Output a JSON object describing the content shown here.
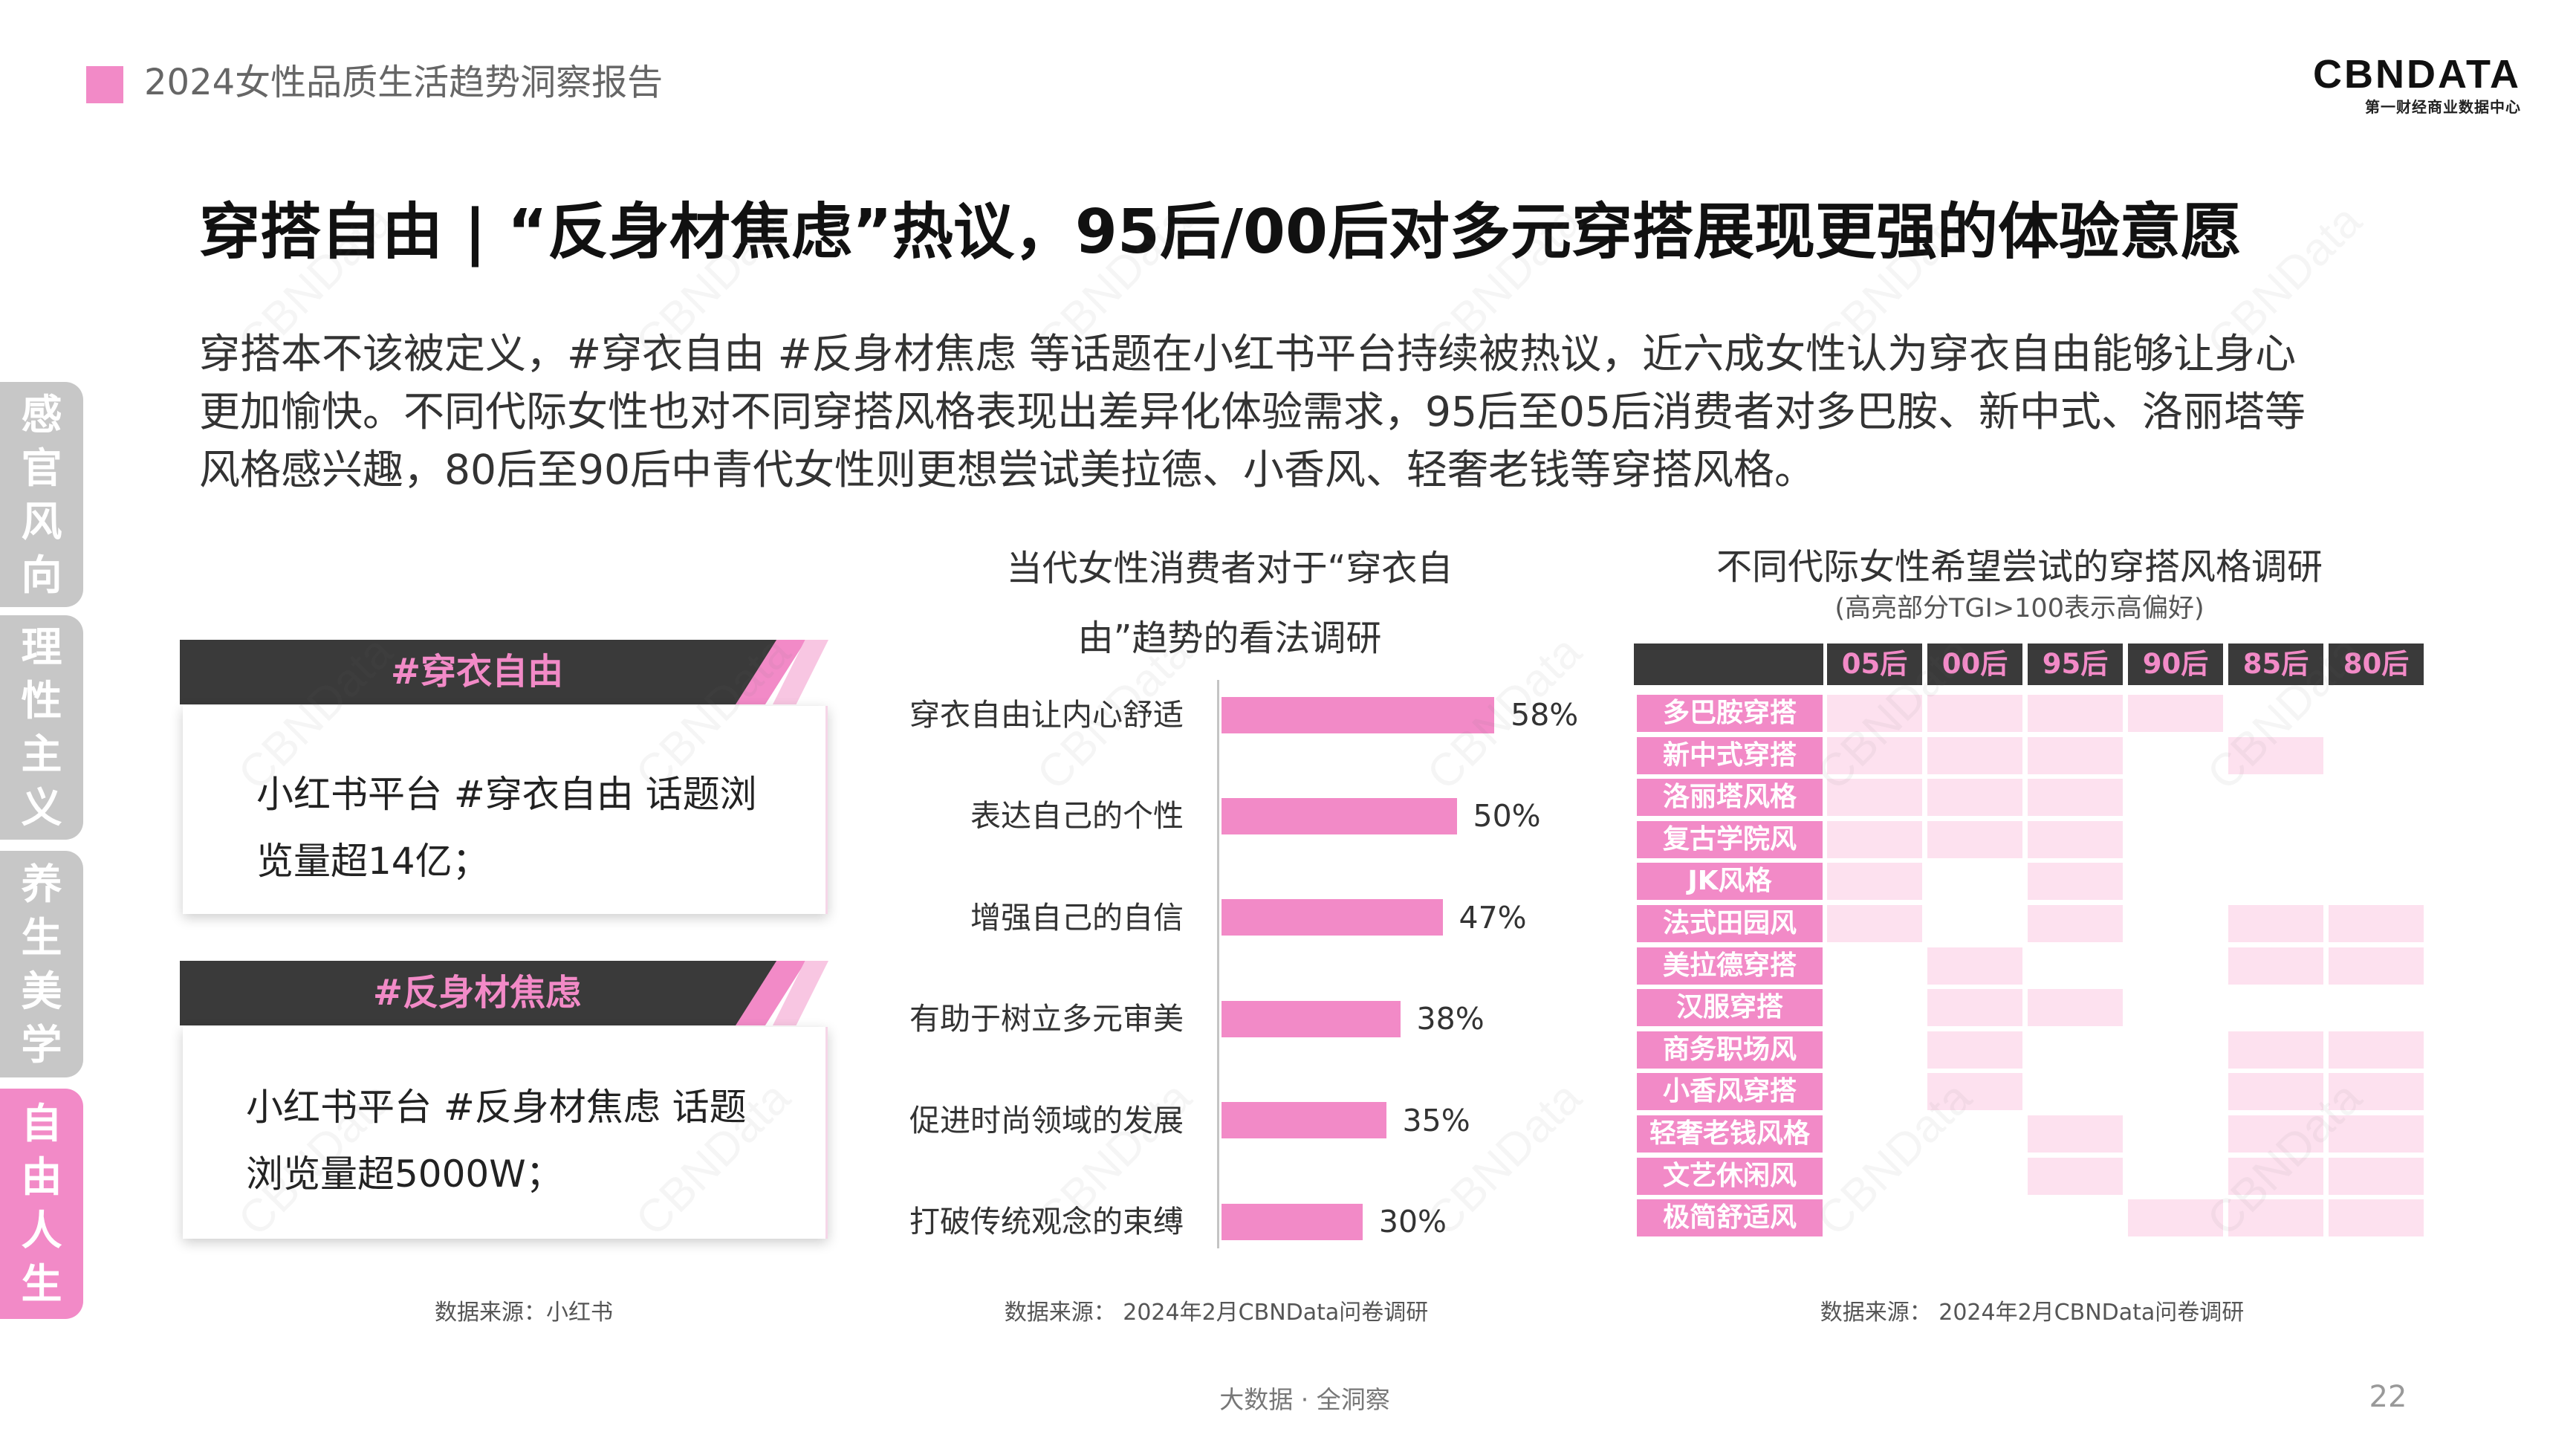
{
  "header": {
    "report_title": "2024女性品质生活趋势洞察报告"
  },
  "logo": {
    "text": "CBNDATA",
    "subtitle": "第一财经商业数据中心"
  },
  "title": "穿搭自由 | “反身材焦虑”热议，95后/00后对多元穿搭展现更强的体验意愿",
  "intro_lines": [
    "穿搭本不该被定义，#穿衣自由 #反身材焦虑 等话题在小红书平台持续被热议，近六成女性认为穿衣自由能够让身心",
    "更加愉快。不同代际女性也对不同穿搭风格表现出差异化体验需求，95后至05后消费者对多巴胺、新中式、洛丽塔等",
    "风格感兴趣，80后至90后中青代女性则更想尝试美拉德、小香风、轻奢老钱等穿搭风格。"
  ],
  "sidebar": {
    "tabs": [
      {
        "label": "感官风向",
        "active": false
      },
      {
        "label": "理性主义",
        "active": false
      },
      {
        "label": "养生美学",
        "active": false
      },
      {
        "label": "自由人生",
        "active": true
      }
    ]
  },
  "cards": [
    {
      "tag": "#穿衣自由",
      "lines": [
        "小红书平台 #穿衣自由 话题浏",
        "览量超14亿；"
      ]
    },
    {
      "tag": "#反身材焦虑",
      "lines": [
        "小红书平台 #反身材焦虑 话题",
        "浏览量超5000W；"
      ]
    }
  ],
  "sources": {
    "cards": "数据来源：小红书",
    "bar_chart": "数据来源： 2024年2月CBNData问卷调研",
    "heatmap": "数据来源： 2024年2月CBNData问卷调研"
  },
  "chart_data": [
    {
      "type": "bar",
      "orientation": "horizontal",
      "title_lines": [
        "当代女性消费者对于“穿衣自",
        "由”趋势的看法调研"
      ],
      "categories": [
        "穿衣自由让内心舒适",
        "表达自己的个性",
        "增强自己的自信",
        "有助于树立多元审美",
        "促进时尚领域的发展",
        "打破传统观念的束缚"
      ],
      "values": [
        58,
        50,
        47,
        38,
        35,
        30
      ],
      "value_labels": [
        "58%",
        "50%",
        "47%",
        "38%",
        "35%",
        "30%"
      ],
      "xlim": [
        0,
        100
      ],
      "grid": false,
      "bar_color": "#f28ac7"
    },
    {
      "type": "heatmap",
      "title": "不同代际女性希望尝试的穿搭风格调研",
      "subtitle": "(高亮部分TGI>100表示高偏好)",
      "columns": [
        "05后",
        "00后",
        "95后",
        "90后",
        "85后",
        "80后"
      ],
      "rows": [
        "多巴胺穿搭",
        "新中式穿搭",
        "洛丽塔风格",
        "复古学院风",
        "JK风格",
        "法式田园风",
        "美拉德穿搭",
        "汉服穿搭",
        "商务职场风",
        "小香风穿搭",
        "轻奢老钱风格",
        "文艺休闲风",
        "极简舒适风"
      ],
      "tgi_over_100": [
        [
          1,
          1,
          1,
          1,
          0,
          0
        ],
        [
          1,
          1,
          1,
          0,
          1,
          0
        ],
        [
          1,
          1,
          1,
          0,
          0,
          0
        ],
        [
          1,
          1,
          1,
          0,
          0,
          0
        ],
        [
          1,
          0,
          1,
          0,
          0,
          0
        ],
        [
          1,
          0,
          1,
          0,
          1,
          1
        ],
        [
          0,
          1,
          0,
          0,
          1,
          1
        ],
        [
          0,
          1,
          1,
          0,
          0,
          0
        ],
        [
          0,
          1,
          0,
          0,
          1,
          1
        ],
        [
          0,
          1,
          0,
          0,
          1,
          1
        ],
        [
          0,
          0,
          1,
          0,
          1,
          1
        ],
        [
          0,
          0,
          1,
          0,
          1,
          1
        ],
        [
          0,
          0,
          0,
          1,
          1,
          1
        ]
      ],
      "highlight_color": "#fde1ef",
      "header_color": "#3a3a3a",
      "header_text_color": "#f28ac7",
      "row_label_color": "#f28ac7"
    }
  ],
  "footer": {
    "slogan": "大数据 · 全洞察",
    "page_number": "22"
  },
  "watermark": "CBNData",
  "colors": {
    "accent": "#f28ac7",
    "dark": "#3a3a3a",
    "inactive_tab": "#c7c7c7",
    "accent_light": "#f8c6e2"
  }
}
